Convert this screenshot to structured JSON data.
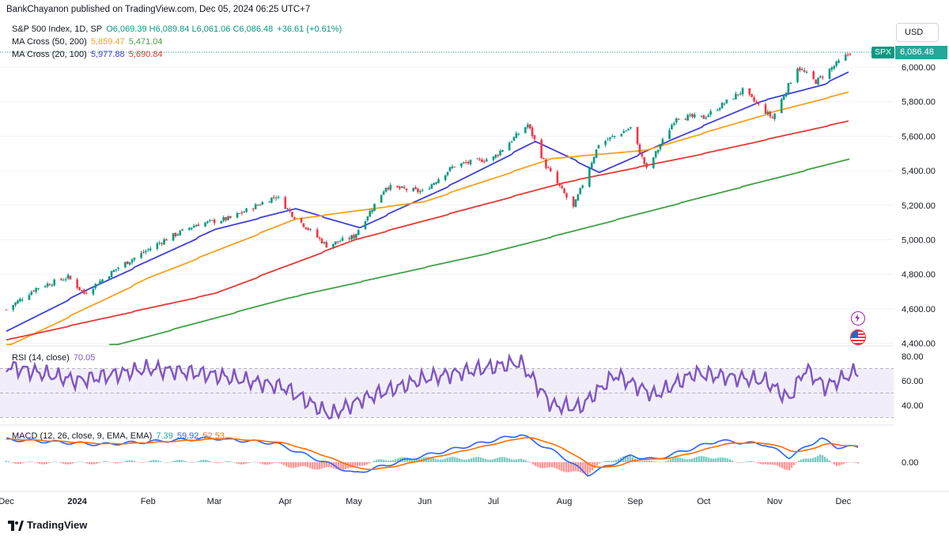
{
  "publisher": "BankChayanon published on TradingView.com, Dec 05, 2024 06:25 UTC+7",
  "legend": {
    "symbol": "S&P 500 Index, 1D, SP",
    "ohlc": "O6,069.39 H6,089.84 L6,061.06 C6,086.48",
    "change": "+36.61 (+0.61%)",
    "ma1_label": "MA Cross (50, 200)",
    "ma1_fast": "5,859.47",
    "ma1_slow": "5,471.04",
    "ma2_label": "MA Cross (20, 100)",
    "ma2_fast": "5,977.88",
    "ma2_slow": "5,690.84",
    "rsi_label": "RSI (14, close)",
    "rsi_value": "70.05",
    "macd_label": "MACD (12, 26, close, 9, EMA, EMA)",
    "macd_hist": "7.39",
    "macd_line": "59.92",
    "macd_signal": "52.53"
  },
  "currency": "USD",
  "symbol_tag": "SPX",
  "last_price": "6,086.48",
  "brand": "TradingView",
  "colors": {
    "up": "#089981",
    "down": "#f23645",
    "ma50": "#f7a21b",
    "ma200": "#43a047",
    "ma20": "#3f3fd8",
    "ma100": "#e53935",
    "rsi": "#7e57c2",
    "macd": "#2962ff",
    "signal": "#ff6d00"
  },
  "chart_data": [
    {
      "type": "candlestick",
      "title": "S&P 500 Index, 1D, SP",
      "x_tick_labels": [
        "Dec",
        "2024",
        "Feb",
        "Mar",
        "Apr",
        "May",
        "Jun",
        "Jul",
        "Aug",
        "Sep",
        "Oct",
        "Nov",
        "Dec"
      ],
      "y_tick_labels": [
        "6,000.00",
        "5,800.00",
        "5,600.00",
        "5,400.00",
        "5,200.00",
        "5,000.00",
        "4,800.00",
        "4,600.00",
        "4,400.00"
      ],
      "ylim": [
        4390,
        6150
      ],
      "close_path": [
        [
          "2023-12-01",
          4595
        ],
        [
          "2023-12-14",
          4720
        ],
        [
          "2023-12-28",
          4783
        ],
        [
          "2024-01-04",
          4690
        ],
        [
          "2024-01-19",
          4840
        ],
        [
          "2024-02-08",
          4998
        ],
        [
          "2024-02-22",
          5088
        ],
        [
          "2024-03-08",
          5125
        ],
        [
          "2024-03-28",
          5254
        ],
        [
          "2024-04-04",
          5147
        ],
        [
          "2024-04-19",
          4967
        ],
        [
          "2024-05-01",
          5018
        ],
        [
          "2024-05-15",
          5308
        ],
        [
          "2024-05-31",
          5278
        ],
        [
          "2024-06-14",
          5431
        ],
        [
          "2024-07-01",
          5475
        ],
        [
          "2024-07-16",
          5667
        ],
        [
          "2024-07-24",
          5427
        ],
        [
          "2024-08-05",
          5186
        ],
        [
          "2024-08-16",
          5554
        ],
        [
          "2024-08-30",
          5648
        ],
        [
          "2024-09-06",
          5408
        ],
        [
          "2024-09-19",
          5713
        ],
        [
          "2024-10-01",
          5708
        ],
        [
          "2024-10-18",
          5864
        ],
        [
          "2024-10-31",
          5705
        ],
        [
          "2024-11-11",
          6001
        ],
        [
          "2024-11-19",
          5916
        ],
        [
          "2024-12-04",
          6086
        ]
      ],
      "series": [
        {
          "name": "MA 20",
          "values": [
            [
              "2023-12-01",
              4470
            ],
            [
              "2024-01-05",
              4710
            ],
            [
              "2024-03-01",
              5060
            ],
            [
              "2024-04-05",
              5180
            ],
            [
              "2024-05-03",
              5070
            ],
            [
              "2024-06-14",
              5330
            ],
            [
              "2024-07-19",
              5570
            ],
            [
              "2024-08-16",
              5390
            ],
            [
              "2024-09-20",
              5600
            ],
            [
              "2024-10-25",
              5800
            ],
            [
              "2024-11-22",
              5900
            ],
            [
              "2024-12-04",
              5978
            ]
          ]
        },
        {
          "name": "MA 50",
          "values": [
            [
              "2023-12-01",
              4380
            ],
            [
              "2024-02-01",
              4780
            ],
            [
              "2024-04-05",
              5120
            ],
            [
              "2024-05-31",
              5220
            ],
            [
              "2024-07-26",
              5470
            ],
            [
              "2024-09-06",
              5520
            ],
            [
              "2024-10-31",
              5740
            ],
            [
              "2024-12-04",
              5859
            ]
          ]
        },
        {
          "name": "MA 100",
          "values": [
            [
              "2023-12-01",
              4420
            ],
            [
              "2024-03-01",
              4690
            ],
            [
              "2024-05-01",
              5000
            ],
            [
              "2024-07-31",
              5330
            ],
            [
              "2024-10-01",
              5500
            ],
            [
              "2024-12-04",
              5691
            ]
          ]
        },
        {
          "name": "MA 200",
          "values": [
            [
              "2024-01-15",
              4380
            ],
            [
              "2024-04-01",
              4660
            ],
            [
              "2024-07-01",
              4930
            ],
            [
              "2024-10-01",
              5250
            ],
            [
              "2024-12-04",
              5471
            ]
          ]
        }
      ]
    },
    {
      "type": "line",
      "title": "RSI (14, close)",
      "y_tick_labels": [
        "80.00",
        "60.00",
        "40.00"
      ],
      "ylim": [
        25,
        85
      ],
      "bands": [
        30,
        70
      ],
      "last": 70.05
    },
    {
      "type": "bar",
      "title": "MACD (12, 26, close, 9, EMA, EMA)",
      "y_tick_labels": [
        "0.00"
      ],
      "last": {
        "histogram": 7.39,
        "macd": 59.92,
        "signal": 52.53
      }
    }
  ]
}
